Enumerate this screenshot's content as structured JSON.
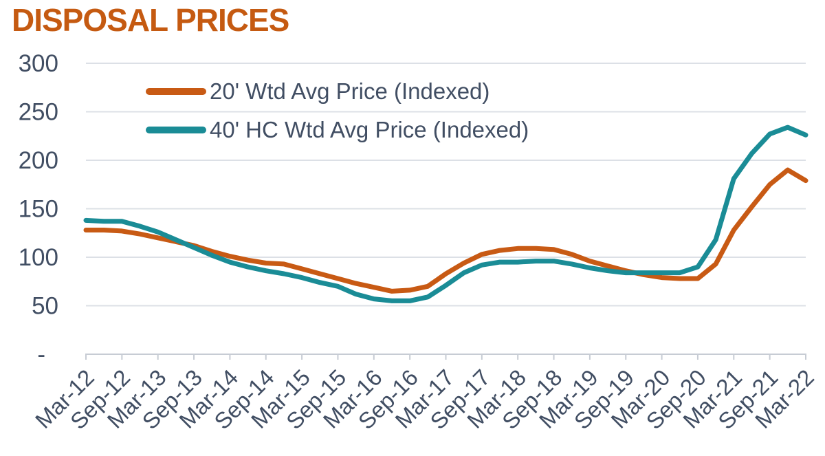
{
  "title": "DISPOSAL PRICES",
  "colors": {
    "title": "#C55A11",
    "axis_text": "#414E63",
    "gridline": "#DCE0E6",
    "axis_line": "#C7CCD4",
    "series_20ft": "#C85A14",
    "series_40hc": "#1A8C96"
  },
  "legend": {
    "items": [
      {
        "id": "20ft",
        "label": "20' Wtd Avg Price (Indexed)"
      },
      {
        "id": "40hc",
        "label": "40' HC Wtd Avg Price (Indexed)"
      }
    ]
  },
  "chart_data": {
    "type": "line",
    "title": "DISPOSAL PRICES",
    "xlabel": "",
    "ylabel": "",
    "ylim": [
      0,
      300
    ],
    "grid": "horizontal",
    "legend_position": "top-left-inside",
    "x": [
      "Mar-12",
      "Jun-12",
      "Sep-12",
      "Dec-12",
      "Mar-13",
      "Jun-13",
      "Sep-13",
      "Dec-13",
      "Mar-14",
      "Jun-14",
      "Sep-14",
      "Dec-14",
      "Mar-15",
      "Jun-15",
      "Sep-15",
      "Dec-15",
      "Mar-16",
      "Jun-16",
      "Sep-16",
      "Dec-16",
      "Mar-17",
      "Jun-17",
      "Sep-17",
      "Dec-17",
      "Mar-18",
      "Jun-18",
      "Sep-18",
      "Dec-18",
      "Mar-19",
      "Jun-19",
      "Sep-19",
      "Dec-19",
      "Mar-20",
      "Jun-20",
      "Sep-20",
      "Dec-20",
      "Mar-21",
      "Jun-21",
      "Sep-21",
      "Dec-21",
      "Mar-22"
    ],
    "x_tick_labels": [
      "Mar-12",
      "Sep-12",
      "Mar-13",
      "Sep-13",
      "Mar-14",
      "Sep-14",
      "Mar-15",
      "Sep-15",
      "Mar-16",
      "Sep-16",
      "Mar-17",
      "Sep-17",
      "Mar-18",
      "Sep-18",
      "Mar-19",
      "Sep-19",
      "Mar-20",
      "Sep-20",
      "Mar-21",
      "Sep-21",
      "Mar-22"
    ],
    "x_label_every": 2,
    "y_ticks": [
      {
        "label": "300",
        "value": 300
      },
      {
        "label": "250",
        "value": 250
      },
      {
        "label": "200",
        "value": 200
      },
      {
        "label": "150",
        "value": 150
      },
      {
        "label": "100",
        "value": 100
      },
      {
        "label": "50",
        "value": 50
      },
      {
        "label": "-",
        "value": 0
      }
    ],
    "series": [
      {
        "id": "20ft",
        "name": "20' Wtd Avg Price (Indexed)",
        "color": "#C85A14",
        "values": [
          128,
          128,
          127,
          124,
          120,
          116,
          112,
          106,
          101,
          97,
          94,
          93,
          88,
          83,
          78,
          73,
          69,
          65,
          66,
          70,
          83,
          94,
          103,
          107,
          109,
          109,
          108,
          103,
          96,
          91,
          86,
          82,
          79,
          78,
          78,
          93,
          128,
          152,
          175,
          190,
          179
        ]
      },
      {
        "id": "40hc",
        "name": "40' HC Wtd Avg Price (Indexed)",
        "color": "#1A8C96",
        "values": [
          138,
          137,
          137,
          132,
          126,
          118,
          110,
          102,
          95,
          90,
          86,
          83,
          79,
          74,
          70,
          62,
          57,
          55,
          55,
          59,
          71,
          84,
          92,
          95,
          95,
          96,
          96,
          93,
          89,
          86,
          84,
          84,
          84,
          84,
          90,
          118,
          181,
          207,
          227,
          234,
          226
        ]
      }
    ]
  }
}
